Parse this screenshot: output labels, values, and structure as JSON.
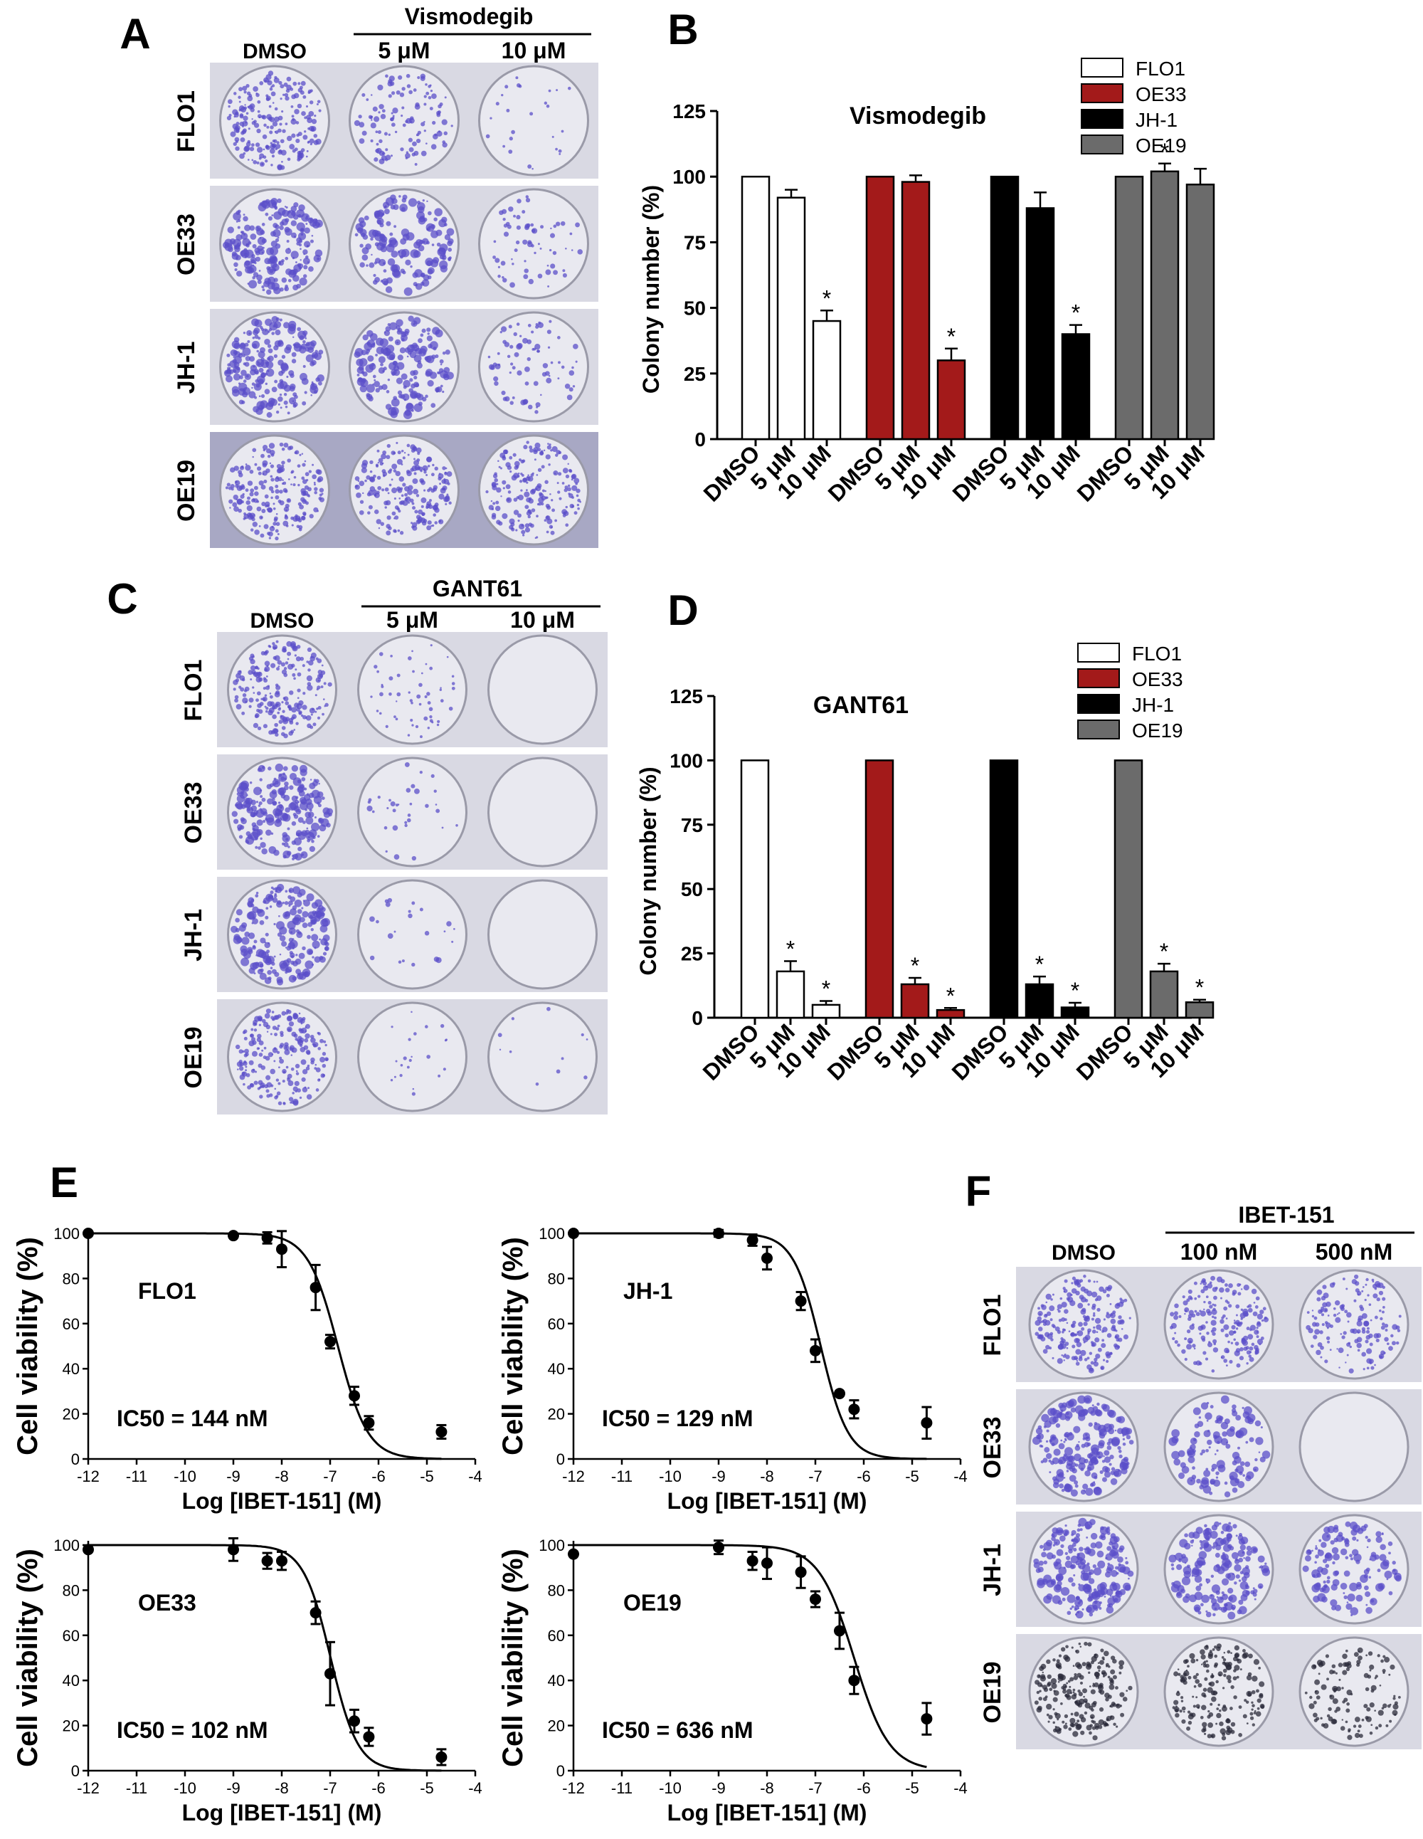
{
  "panels": {
    "A": {
      "letter": "A",
      "col_dmso": "DMSO",
      "drug": "Vismodegib",
      "col_low": "5 μM",
      "col_high": "10 μM",
      "rows": [
        "FLO1",
        "OE33",
        "JH-1",
        "OE19"
      ],
      "densities": [
        [
          1.0,
          0.55,
          0.12
        ],
        [
          1.0,
          0.75,
          0.3
        ],
        [
          1.0,
          0.85,
          0.35
        ],
        [
          1.0,
          0.95,
          0.9
        ]
      ]
    },
    "C": {
      "letter": "C",
      "col_dmso": "DMSO",
      "drug": "GANT61",
      "col_low": "5 μM",
      "col_high": "10 μM",
      "rows": [
        "FLO1",
        "OE33",
        "JH-1",
        "OE19"
      ],
      "densities": [
        [
          1.0,
          0.25,
          0.0
        ],
        [
          1.0,
          0.15,
          0.0
        ],
        [
          1.0,
          0.1,
          0.0
        ],
        [
          1.0,
          0.1,
          0.05
        ]
      ]
    },
    "F": {
      "letter": "F",
      "col_dmso": "DMSO",
      "drug": "IBET-151",
      "col_low": "100 nM",
      "col_high": "500 nM",
      "rows": [
        "FLO1",
        "OE33",
        "JH-1",
        "OE19"
      ],
      "densities": [
        [
          1.0,
          0.9,
          0.7
        ],
        [
          1.0,
          0.55,
          0.0
        ],
        [
          1.0,
          0.85,
          0.6
        ],
        [
          1.0,
          0.85,
          0.55
        ]
      ]
    }
  },
  "colors": {
    "FLO1": "#ffffff",
    "OE33": "#a31a1a",
    "JH-1": "#000000",
    "OE19": "#6b6b6b",
    "colony": "#5b4fc9",
    "plate_bg": "#e9e9f0"
  },
  "chart_data": [
    {
      "panel": "B",
      "type": "bar",
      "title": "Vismodegib",
      "ylabel": "Colony number (%)",
      "ylim": [
        0,
        125
      ],
      "yticks": [
        0,
        25,
        50,
        75,
        100,
        125
      ],
      "categories": [
        "DMSO",
        "5 μM",
        "10 μM"
      ],
      "legend": "top-right",
      "series": [
        {
          "name": "FLO1",
          "values": [
            100,
            92,
            45
          ],
          "errors": [
            0,
            3,
            4
          ],
          "sig": [
            false,
            false,
            true
          ]
        },
        {
          "name": "OE33",
          "values": [
            100,
            98,
            30
          ],
          "errors": [
            0,
            2.5,
            4.5
          ],
          "sig": [
            false,
            false,
            true
          ]
        },
        {
          "name": "JH-1",
          "values": [
            100,
            88,
            40
          ],
          "errors": [
            0,
            6,
            3.5
          ],
          "sig": [
            false,
            false,
            true
          ]
        },
        {
          "name": "OE19",
          "values": [
            100,
            102,
            97
          ],
          "errors": [
            0,
            3,
            6
          ],
          "sig": [
            false,
            true,
            false
          ]
        }
      ]
    },
    {
      "panel": "D",
      "type": "bar",
      "title": "GANT61",
      "ylabel": "Colony number (%)",
      "ylim": [
        0,
        125
      ],
      "yticks": [
        0,
        25,
        50,
        75,
        100,
        125
      ],
      "categories": [
        "DMSO",
        "5 μM",
        "10 μM"
      ],
      "legend": "top-right",
      "series": [
        {
          "name": "FLO1",
          "values": [
            100,
            18,
            5
          ],
          "errors": [
            0,
            4,
            1.5
          ],
          "sig": [
            false,
            true,
            true
          ]
        },
        {
          "name": "OE33",
          "values": [
            100,
            13,
            3
          ],
          "errors": [
            0,
            2.5,
            0.8
          ],
          "sig": [
            false,
            true,
            true
          ]
        },
        {
          "name": "JH-1",
          "values": [
            100,
            13,
            4
          ],
          "errors": [
            0,
            3,
            1.8
          ],
          "sig": [
            false,
            true,
            true
          ]
        },
        {
          "name": "OE19",
          "values": [
            100,
            18,
            6
          ],
          "errors": [
            0,
            3,
            1
          ],
          "sig": [
            false,
            true,
            true
          ]
        }
      ]
    },
    {
      "panel": "E",
      "type": "scatter",
      "subtype": "dose-response",
      "letter": "E",
      "xlabel": "Log [IBET-151] (M)",
      "ylabel": "Cell viability (%)",
      "xlim": [
        -12,
        -4
      ],
      "ylim": [
        0,
        100
      ],
      "xticks": [
        -12,
        -11,
        -10,
        -9,
        -8,
        -7,
        -6,
        -5,
        -4
      ],
      "yticks": [
        0,
        20,
        40,
        60,
        80,
        100
      ],
      "plots": [
        {
          "name": "FLO1",
          "ic50_label": "IC50 = 144 nM",
          "log_ic50": -6.84,
          "hill": 1.0,
          "points": [
            [
              -12,
              100,
              0
            ],
            [
              -9,
              99,
              0
            ],
            [
              -8.3,
              98,
              2.5
            ],
            [
              -8,
              93,
              8
            ],
            [
              -7.3,
              76,
              10
            ],
            [
              -7,
              52,
              3
            ],
            [
              -6.5,
              28,
              4
            ],
            [
              -6.2,
              16,
              3
            ],
            [
              -4.7,
              12,
              3
            ]
          ]
        },
        {
          "name": "JH-1",
          "ic50_label": "IC50 = 129 nM",
          "log_ic50": -6.89,
          "hill": 1.1,
          "points": [
            [
              -12,
              100,
              0
            ],
            [
              -9,
              100,
              1.5
            ],
            [
              -8.3,
              97,
              2.5
            ],
            [
              -8,
              89,
              5
            ],
            [
              -7.3,
              70,
              4
            ],
            [
              -7,
              48,
              5
            ],
            [
              -6.5,
              29,
              0
            ],
            [
              -6.2,
              22,
              4
            ],
            [
              -4.7,
              16,
              7
            ]
          ]
        },
        {
          "name": "OE33",
          "ic50_label": "IC50 = 102 nM",
          "log_ic50": -6.99,
          "hill": 1.1,
          "points": [
            [
              -12,
              98,
              0
            ],
            [
              -9,
              98,
              5
            ],
            [
              -8.3,
              93,
              3.5
            ],
            [
              -8,
              93,
              4
            ],
            [
              -7.3,
              70,
              5
            ],
            [
              -7,
              43,
              14
            ],
            [
              -6.5,
              22,
              5
            ],
            [
              -6.2,
              15,
              4
            ],
            [
              -4.7,
              6,
              3.5
            ]
          ]
        },
        {
          "name": "OE19",
          "ic50_label": "IC50 = 636 nM",
          "log_ic50": -6.2,
          "hill": 0.85,
          "points": [
            [
              -12,
              96,
              0
            ],
            [
              -9,
              99,
              3
            ],
            [
              -8.3,
              93,
              4
            ],
            [
              -8,
              92,
              7
            ],
            [
              -7.3,
              88,
              7
            ],
            [
              -7,
              76,
              3.5
            ],
            [
              -6.5,
              62,
              8
            ],
            [
              -6.2,
              40,
              6
            ],
            [
              -4.7,
              23,
              7
            ]
          ]
        }
      ]
    }
  ]
}
